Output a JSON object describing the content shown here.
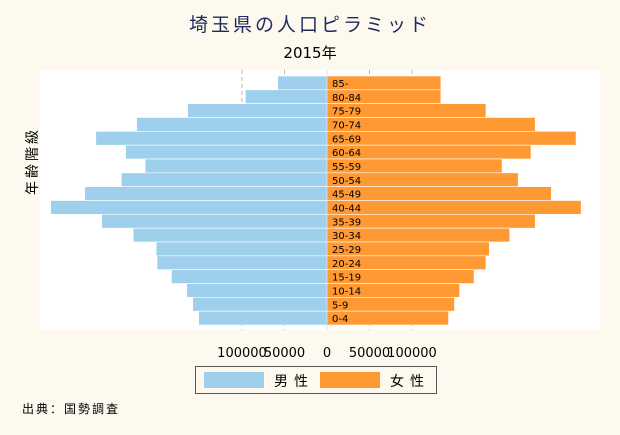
{
  "chart_data": {
    "type": "bar",
    "orientation": "horizontal",
    "layout": "population-pyramid",
    "title": "埼玉県の人口ピラミッド",
    "subtitle": "2015年",
    "ylabel": "年齢階級",
    "source": "出典：国勢調査",
    "categories": [
      "0-4",
      "5-9",
      "10-14",
      "15-19",
      "20-24",
      "25-29",
      "30-34",
      "35-39",
      "40-44",
      "45-49",
      "50-54",
      "55-59",
      "60-64",
      "65-69",
      "70-74",
      "75-79",
      "80-84",
      "85-"
    ],
    "series": [
      {
        "name": "男性",
        "color": "#9ecfec",
        "values": [
          151000,
          158000,
          165000,
          183000,
          200000,
          201000,
          228000,
          265000,
          325000,
          285000,
          242000,
          214000,
          237000,
          272000,
          224000,
          164000,
          96000,
          58000
        ]
      },
      {
        "name": "女性",
        "color": "#ff9933",
        "values": [
          143000,
          150000,
          156000,
          173000,
          187000,
          191000,
          215000,
          245000,
          299000,
          264000,
          225000,
          206000,
          240000,
          293000,
          245000,
          187000,
          134000,
          134000
        ]
      }
    ],
    "xticks": [
      "100000",
      "50000",
      "0",
      "50000",
      "100000"
    ],
    "xlim": [
      -330000,
      330000
    ],
    "grid": true,
    "legend_position": "bottom"
  }
}
